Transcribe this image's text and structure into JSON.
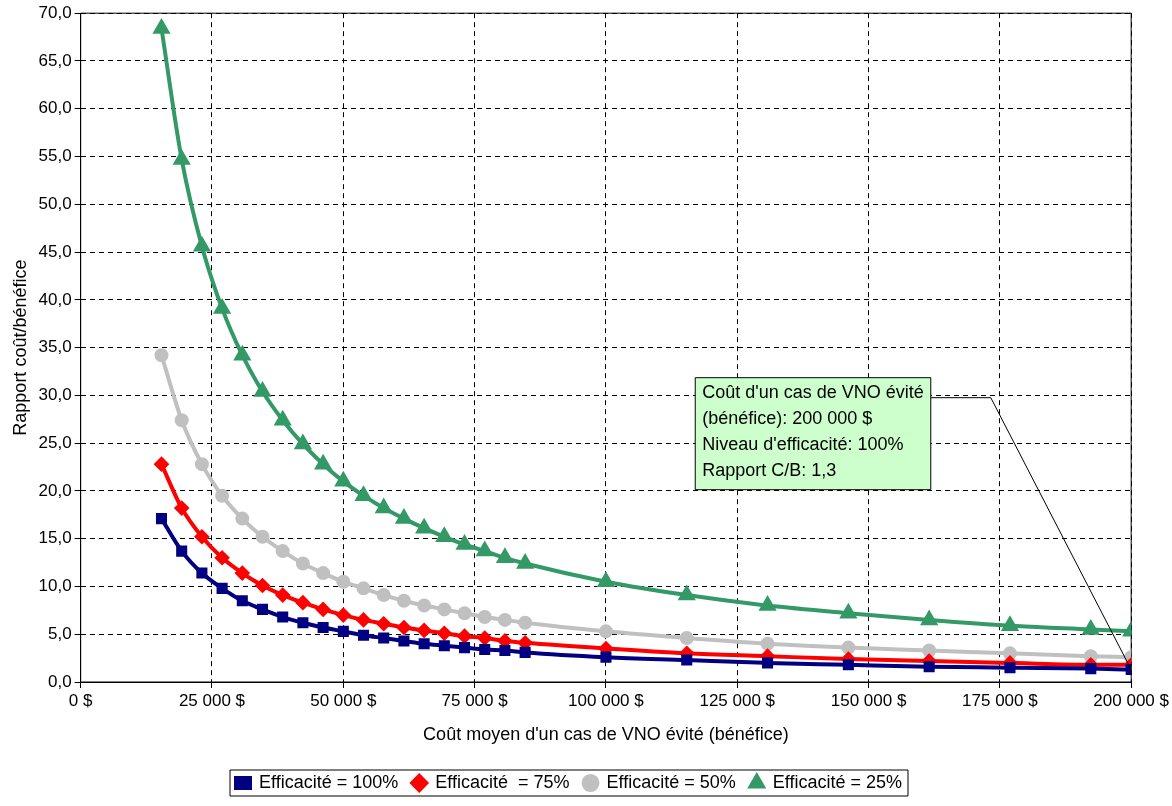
{
  "chart_data": {
    "type": "line",
    "xlabel": "Coût moyen d'un cas de VNO évité (bénéfice)",
    "ylabel": "Rapport coût/bénéfice",
    "x": [
      15385,
      19231,
      23077,
      26923,
      30769,
      34615,
      38462,
      42308,
      46154,
      50000,
      53846,
      57692,
      61538,
      65385,
      69231,
      73077,
      76923,
      80769,
      84615,
      100000,
      115385,
      130769,
      146154,
      161538,
      176923,
      192308,
      200000
    ],
    "series": [
      {
        "name": "Efficacité = 100%",
        "color": "#000080",
        "marker": "square",
        "values": [
          17.1,
          13.7,
          11.4,
          9.8,
          8.5,
          7.6,
          6.8,
          6.2,
          5.7,
          5.3,
          4.9,
          4.6,
          4.3,
          4.0,
          3.8,
          3.6,
          3.4,
          3.3,
          3.1,
          2.6,
          2.3,
          2.0,
          1.8,
          1.6,
          1.5,
          1.4,
          1.3
        ]
      },
      {
        "name": "Efficacité  = 75%",
        "color": "#ff0000",
        "marker": "diamond",
        "values": [
          22.8,
          18.2,
          15.2,
          13.0,
          11.4,
          10.1,
          9.1,
          8.3,
          7.6,
          7.0,
          6.5,
          6.1,
          5.7,
          5.4,
          5.1,
          4.8,
          4.6,
          4.3,
          4.1,
          3.5,
          3.0,
          2.7,
          2.4,
          2.2,
          2.0,
          1.8,
          1.8
        ]
      },
      {
        "name": "Efficacité = 50%",
        "color": "#c0c0c0",
        "marker": "circle",
        "values": [
          34.2,
          27.4,
          22.8,
          19.5,
          17.1,
          15.2,
          13.7,
          12.4,
          11.4,
          10.5,
          9.8,
          9.1,
          8.5,
          8.0,
          7.6,
          7.2,
          6.8,
          6.5,
          6.2,
          5.3,
          4.6,
          4.0,
          3.6,
          3.3,
          3.0,
          2.7,
          2.6
        ]
      },
      {
        "name": "Efficacité = 25%",
        "color": "#339966",
        "marker": "triangle",
        "values": [
          68.4,
          54.7,
          45.6,
          39.1,
          34.2,
          30.4,
          27.4,
          24.9,
          22.8,
          21.0,
          19.5,
          18.2,
          17.1,
          16.1,
          15.2,
          14.4,
          13.7,
          13.0,
          12.4,
          10.5,
          9.1,
          8.0,
          7.2,
          6.5,
          5.9,
          5.5,
          5.3
        ]
      }
    ],
    "xlim": [
      0,
      200000
    ],
    "xticks": [
      {
        "value": 0,
        "label": "0 $"
      },
      {
        "value": 25000,
        "label": "25 000 $"
      },
      {
        "value": 50000,
        "label": "50 000 $"
      },
      {
        "value": 75000,
        "label": "75 000 $"
      },
      {
        "value": 100000,
        "label": "100 000 $"
      },
      {
        "value": 125000,
        "label": "125 000 $"
      },
      {
        "value": 150000,
        "label": "150 000 $"
      },
      {
        "value": 175000,
        "label": "175 000 $"
      },
      {
        "value": 200000,
        "label": "200 000 $"
      }
    ],
    "ylim": [
      0,
      70
    ],
    "yticks": [
      {
        "value": 0,
        "label": "0,0"
      },
      {
        "value": 5,
        "label": "5,0"
      },
      {
        "value": 10,
        "label": "10,0"
      },
      {
        "value": 15,
        "label": "15,0"
      },
      {
        "value": 20,
        "label": "20,0"
      },
      {
        "value": 25,
        "label": "25,0"
      },
      {
        "value": 30,
        "label": "30,0"
      },
      {
        "value": 35,
        "label": "35,0"
      },
      {
        "value": 40,
        "label": "40,0"
      },
      {
        "value": 45,
        "label": "45,0"
      },
      {
        "value": 50,
        "label": "50,0"
      },
      {
        "value": 55,
        "label": "55,0"
      },
      {
        "value": 60,
        "label": "60,0"
      },
      {
        "value": 65,
        "label": "65,0"
      },
      {
        "value": 70,
        "label": "70,0"
      }
    ],
    "grid": true,
    "line_style": "solid",
    "legend": "bottom",
    "annotations": [
      {
        "text": "Coût d'un cas de VNO évité\n(bénéfice): 200 000 $\nNiveau d'efficacité: 100%\nRapport C/B: 1,3",
        "x": 200000,
        "y": 1.3
      }
    ]
  }
}
